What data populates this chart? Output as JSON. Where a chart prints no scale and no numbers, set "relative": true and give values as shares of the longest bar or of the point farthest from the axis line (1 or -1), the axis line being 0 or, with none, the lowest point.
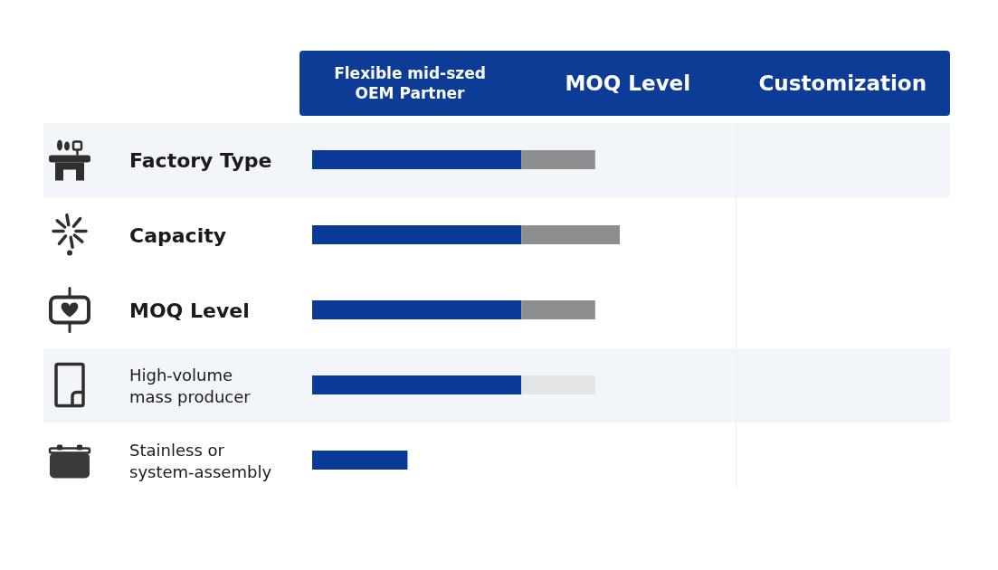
{
  "chart_data": {
    "type": "bar",
    "orientation": "horizontal",
    "stacked": true,
    "relative": true,
    "categories": [
      "Factory Type",
      "Capacity",
      "MOQ Level",
      "High-volume mass producer",
      "Stainless or system-assembly"
    ],
    "series": [
      {
        "color": "#0a3a98",
        "values": [
          0.68,
          0.68,
          0.68,
          0.68,
          0.31
        ]
      },
      {
        "colors": [
          "#8c8d8e",
          "#8c8d8e",
          "#8c8d8e",
          "#e3e5e7",
          "#8c8d8e"
        ],
        "values": [
          0.24,
          0.32,
          0.24,
          0.24,
          null
        ]
      }
    ],
    "annotations": [
      "Flexible mid-szed OEM Partner",
      "MOQ Level",
      "Customization"
    ]
  }
}
